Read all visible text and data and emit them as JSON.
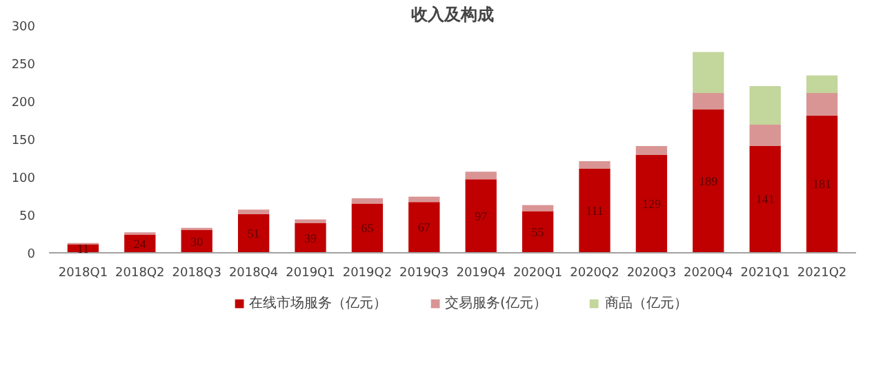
{
  "chart_data": {
    "type": "bar",
    "title": "收入及构成",
    "stacked": true,
    "legend": "bottom",
    "grid": false,
    "categories": [
      "2018Q1",
      "2018Q2",
      "2018Q3",
      "2018Q4",
      "2019Q1",
      "2019Q2",
      "2019Q3",
      "2019Q4",
      "2020Q1",
      "2020Q2",
      "2020Q3",
      "2020Q4",
      "2021Q1",
      "2021Q2"
    ],
    "ylim": [
      0,
      300
    ],
    "yticks": [
      0,
      50,
      100,
      150,
      200,
      250,
      300
    ],
    "series": [
      {
        "name": "在线市场服务（亿元）",
        "color": "#c00000",
        "values": [
          11,
          24,
          30,
          51,
          39,
          65,
          67,
          97,
          55,
          111,
          129,
          189,
          141,
          181
        ],
        "value_labels": [
          "11",
          "24",
          "30",
          "51",
          "39",
          "65",
          "67",
          "97",
          "55",
          "111",
          "129",
          "189",
          "141",
          "181"
        ]
      },
      {
        "name": "交易服务(亿元）",
        "color": "#d99594",
        "values": [
          2,
          3,
          3,
          6,
          5,
          7,
          7,
          10,
          8,
          10,
          12,
          22,
          28,
          30
        ]
      },
      {
        "name": "商品（亿元）",
        "color": "#c3d69b",
        "values": [
          null,
          null,
          null,
          null,
          null,
          null,
          null,
          null,
          null,
          null,
          null,
          54,
          51,
          23
        ]
      }
    ]
  }
}
